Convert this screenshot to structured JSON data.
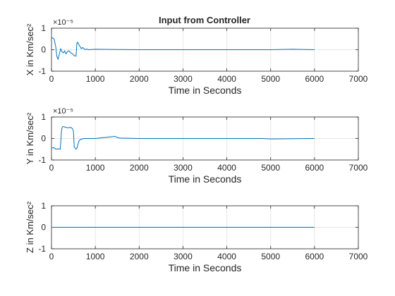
{
  "figure": {
    "title": "Input from Controller",
    "background": "#ffffff",
    "axis_color": "#262626",
    "grid_color": "#e6e6e6",
    "line_color": "#0072bd"
  },
  "chart_data": [
    {
      "type": "line",
      "title": "Input from Controller",
      "xlabel": "Time in Seconds",
      "ylabel": "X in Km/sec²",
      "exponent_label": "×10⁻⁵",
      "xlim": [
        0,
        7000
      ],
      "ylim": [
        -1,
        1
      ],
      "xticks": [
        0,
        1000,
        2000,
        3000,
        4000,
        5000,
        6000,
        7000
      ],
      "yticks": [
        -1,
        0,
        1
      ],
      "grid": true,
      "series": [
        {
          "x": [
            0,
            20,
            60,
            100,
            120,
            150,
            180,
            210,
            240,
            270,
            300,
            330,
            360,
            400,
            440,
            480,
            520,
            560,
            580,
            600,
            620,
            650,
            680,
            710,
            740,
            770,
            800,
            850,
            1000,
            1500,
            2000,
            3000,
            4000,
            5000,
            5500,
            6000
          ],
          "y": [
            0.52,
            0.55,
            0.5,
            0.1,
            -0.3,
            -0.45,
            -0.2,
            0.05,
            -0.1,
            -0.15,
            -0.05,
            -0.2,
            -0.1,
            -0.05,
            -0.15,
            -0.2,
            -0.28,
            -0.3,
            0.3,
            0.35,
            0.25,
            0.15,
            0.05,
            0.1,
            0.05,
            0.0,
            0.03,
            0.0,
            0.02,
            0.01,
            0.0,
            0.0,
            0.0,
            0.0,
            0.02,
            0.0
          ]
        }
      ]
    },
    {
      "type": "line",
      "xlabel": "Time in Seconds",
      "ylabel": "Y in Km/sec²",
      "exponent_label": "×10⁻⁵",
      "xlim": [
        0,
        7000
      ],
      "ylim": [
        -1,
        1
      ],
      "xticks": [
        0,
        1000,
        2000,
        3000,
        4000,
        5000,
        6000,
        7000
      ],
      "yticks": [
        -1,
        0,
        1
      ],
      "grid": true,
      "series": [
        {
          "x": [
            0,
            50,
            100,
            150,
            200,
            230,
            250,
            280,
            320,
            360,
            400,
            440,
            480,
            500,
            520,
            540,
            560,
            580,
            600,
            630,
            660,
            700,
            750,
            800,
            1000,
            1450,
            1500,
            1550,
            2000,
            3000,
            4000,
            4800,
            5000,
            6000
          ],
          "y": [
            -0.45,
            -0.42,
            -0.5,
            -0.48,
            -0.5,
            0.4,
            0.55,
            0.55,
            0.52,
            0.5,
            0.5,
            0.52,
            0.45,
            0.35,
            -0.4,
            -0.45,
            -0.5,
            -0.45,
            -0.3,
            -0.1,
            -0.05,
            -0.02,
            0.0,
            0.0,
            0.0,
            0.1,
            0.05,
            0.02,
            0.0,
            0.0,
            0.0,
            0.0,
            -0.02,
            0.0
          ]
        }
      ]
    },
    {
      "type": "line",
      "xlabel": "Time in Seconds",
      "ylabel": "Z in Km/sec²",
      "xlim": [
        0,
        7000
      ],
      "ylim": [
        -1,
        1
      ],
      "xticks": [
        0,
        1000,
        2000,
        3000,
        4000,
        5000,
        6000,
        7000
      ],
      "yticks": [
        -1,
        0,
        1
      ],
      "grid": true,
      "series": [
        {
          "x": [
            0,
            6000
          ],
          "y": [
            0,
            0
          ]
        }
      ]
    }
  ]
}
